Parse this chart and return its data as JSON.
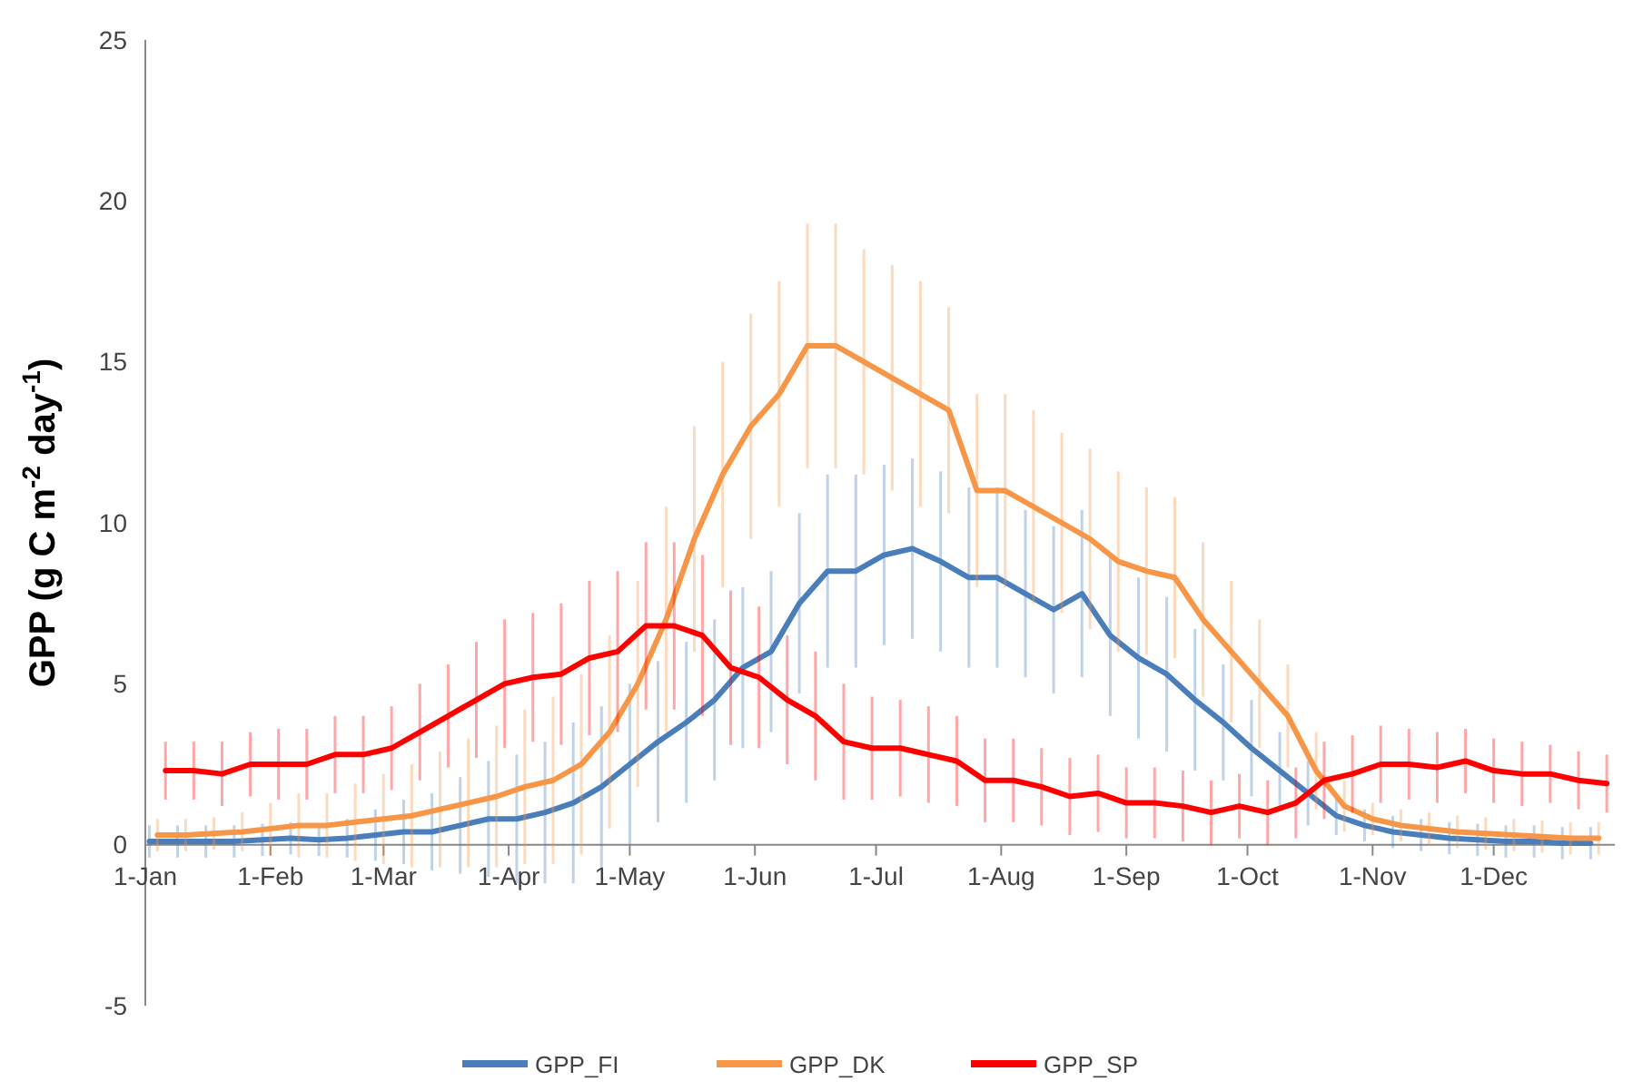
{
  "chart_data": {
    "type": "line",
    "ylabel": "GPP (g C m$^{-2}$ day$^{-1}$)",
    "series": [
      {
        "name": "GPP_FI",
        "color": "#4a7ebb",
        "x": [
          "--01-02",
          "--01-09",
          "--01-16",
          "--01-23",
          "--01-30",
          "--02-06",
          "--02-13",
          "--02-20",
          "--02-27",
          "--03-06",
          "--03-13",
          "--03-20",
          "--03-27",
          "--04-03",
          "--04-10",
          "--04-17",
          "--04-24",
          "--05-01",
          "--05-08",
          "--05-15",
          "--05-22",
          "--05-29",
          "--06-05",
          "--06-12",
          "--06-19",
          "--06-26",
          "--07-03",
          "--07-10",
          "--07-17",
          "--07-24",
          "--07-31",
          "--08-07",
          "--08-14",
          "--08-21",
          "--08-28",
          "--09-04",
          "--09-11",
          "--09-18",
          "--09-25",
          "--10-02",
          "--10-09",
          "--10-16",
          "--10-23",
          "--10-30",
          "--11-06",
          "--11-13",
          "--11-20",
          "--11-27",
          "--12-04",
          "--12-11",
          "--12-18",
          "--12-25"
        ],
        "values": [
          0.1,
          0.1,
          0.1,
          0.1,
          0.15,
          0.2,
          0.15,
          0.2,
          0.3,
          0.4,
          0.4,
          0.6,
          0.8,
          0.8,
          1.0,
          1.3,
          1.8,
          2.5,
          3.2,
          3.8,
          4.5,
          5.5,
          6.0,
          7.5,
          8.5,
          8.5,
          9.0,
          9.2,
          8.8,
          8.3,
          8.3,
          7.8,
          7.3,
          7.8,
          6.5,
          5.8,
          5.3,
          4.5,
          3.8,
          3.0,
          2.3,
          1.6,
          0.9,
          0.6,
          0.4,
          0.3,
          0.2,
          0.15,
          0.1,
          0.1,
          0.05,
          0.05
        ],
        "errors": [
          0.5,
          0.5,
          0.5,
          0.5,
          0.5,
          0.5,
          0.5,
          0.6,
          0.8,
          1,
          1.2,
          1.5,
          1.8,
          2,
          2.2,
          2.5,
          2.5,
          2.5,
          2.5,
          2.5,
          2.5,
          2.5,
          2.5,
          2.8,
          3,
          3,
          2.8,
          2.8,
          2.8,
          2.8,
          2.8,
          2.6,
          2.6,
          2.6,
          2.5,
          2.5,
          2.4,
          2.2,
          1.8,
          1.5,
          1.2,
          1,
          0.6,
          0.5,
          0.5,
          0.5,
          0.5,
          0.5,
          0.5,
          0.5,
          0.5,
          0.5
        ]
      },
      {
        "name": "GPP_DK",
        "color": "#f79646",
        "x": [
          "--01-04",
          "--01-11",
          "--01-18",
          "--01-25",
          "--02-01",
          "--02-08",
          "--02-15",
          "--02-22",
          "--03-01",
          "--03-08",
          "--03-15",
          "--03-22",
          "--03-29",
          "--04-05",
          "--04-12",
          "--04-19",
          "--04-26",
          "--05-03",
          "--05-10",
          "--05-17",
          "--05-24",
          "--05-31",
          "--06-07",
          "--06-14",
          "--06-21",
          "--06-28",
          "--07-05",
          "--07-12",
          "--07-19",
          "--07-26",
          "--08-02",
          "--08-09",
          "--08-16",
          "--08-23",
          "--08-30",
          "--09-06",
          "--09-13",
          "--09-20",
          "--09-27",
          "--10-04",
          "--10-11",
          "--10-18",
          "--10-25",
          "--11-01",
          "--11-08",
          "--11-15",
          "--11-22",
          "--11-29",
          "--12-06",
          "--12-13",
          "--12-20",
          "--12-27"
        ],
        "values": [
          0.3,
          0.3,
          0.35,
          0.4,
          0.5,
          0.6,
          0.6,
          0.7,
          0.8,
          0.9,
          1.1,
          1.3,
          1.5,
          1.8,
          2.0,
          2.5,
          3.5,
          5.0,
          7.0,
          9.5,
          11.5,
          13.0,
          14.0,
          15.5,
          15.5,
          15.0,
          14.5,
          14.0,
          13.5,
          11.0,
          11.0,
          10.5,
          10.0,
          9.5,
          8.8,
          8.5,
          8.3,
          7.0,
          6.0,
          5.0,
          4.0,
          2.3,
          1.2,
          0.8,
          0.6,
          0.5,
          0.4,
          0.35,
          0.3,
          0.25,
          0.2,
          0.2
        ],
        "errors": [
          0.5,
          0.5,
          0.5,
          0.6,
          0.8,
          1,
          1,
          1.2,
          1.4,
          1.6,
          1.8,
          2,
          2.2,
          2.4,
          2.6,
          2.8,
          3,
          3.2,
          3.5,
          3.5,
          3.5,
          3.5,
          3.5,
          3.8,
          3.8,
          3.5,
          3.5,
          3.5,
          3.2,
          3,
          3,
          3,
          2.8,
          2.8,
          2.8,
          2.6,
          2.5,
          2.4,
          2.2,
          2,
          1.6,
          1.2,
          0.8,
          0.5,
          0.5,
          0.5,
          0.5,
          0.5,
          0.5,
          0.5,
          0.5,
          0.5
        ]
      },
      {
        "name": "GPP_SP",
        "color": "#ff0000",
        "x": [
          "--01-06",
          "--01-13",
          "--01-20",
          "--01-27",
          "--02-03",
          "--02-10",
          "--02-17",
          "--02-24",
          "--03-03",
          "--03-10",
          "--03-17",
          "--03-24",
          "--03-31",
          "--04-07",
          "--04-14",
          "--04-21",
          "--04-28",
          "--05-05",
          "--05-12",
          "--05-19",
          "--05-26",
          "--06-02",
          "--06-09",
          "--06-16",
          "--06-23",
          "--06-30",
          "--07-07",
          "--07-14",
          "--07-21",
          "--07-28",
          "--08-04",
          "--08-11",
          "--08-18",
          "--08-25",
          "--09-01",
          "--09-08",
          "--09-15",
          "--09-22",
          "--09-29",
          "--10-06",
          "--10-13",
          "--10-20",
          "--10-27",
          "--11-03",
          "--11-10",
          "--11-17",
          "--11-24",
          "--12-01",
          "--12-08",
          "--12-15",
          "--12-22",
          "--12-29"
        ],
        "values": [
          2.3,
          2.3,
          2.2,
          2.5,
          2.5,
          2.5,
          2.8,
          2.8,
          3.0,
          3.5,
          4.0,
          4.5,
          5.0,
          5.2,
          5.3,
          5.8,
          6.0,
          6.8,
          6.8,
          6.5,
          5.5,
          5.2,
          4.5,
          4.0,
          3.2,
          3.0,
          3.0,
          2.8,
          2.6,
          2.0,
          2.0,
          1.8,
          1.5,
          1.6,
          1.3,
          1.3,
          1.2,
          1.0,
          1.2,
          1.0,
          1.3,
          2.0,
          2.2,
          2.5,
          2.5,
          2.4,
          2.6,
          2.3,
          2.2,
          2.2,
          2.0,
          1.9
        ],
        "errors": [
          0.9,
          0.9,
          1,
          1,
          1.1,
          1.1,
          1.2,
          1.2,
          1.3,
          1.5,
          1.6,
          1.8,
          2,
          2,
          2.2,
          2.4,
          2.5,
          2.6,
          2.6,
          2.5,
          2.4,
          2.2,
          2,
          2,
          1.8,
          1.6,
          1.5,
          1.5,
          1.4,
          1.3,
          1.3,
          1.2,
          1.2,
          1.2,
          1.1,
          1.1,
          1.1,
          1,
          1,
          1,
          1.1,
          1.2,
          1.2,
          1.2,
          1.1,
          1.1,
          1,
          1,
          1,
          0.9,
          0.9,
          0.9
        ]
      }
    ],
    "xlim": [
      "--01-01",
      "--12-31"
    ],
    "xticks": [
      {
        "value": "--01-01",
        "label": "1-Jan"
      },
      {
        "value": "--02-01",
        "label": "1-Feb"
      },
      {
        "value": "--03-01",
        "label": "1-Mar"
      },
      {
        "value": "--04-01",
        "label": "1-Apr"
      },
      {
        "value": "--05-01",
        "label": "1-May"
      },
      {
        "value": "--06-01",
        "label": "1-Jun"
      },
      {
        "value": "--07-01",
        "label": "1-Jul"
      },
      {
        "value": "--08-01",
        "label": "1-Aug"
      },
      {
        "value": "--09-01",
        "label": "1-Sep"
      },
      {
        "value": "--10-01",
        "label": "1-Oct"
      },
      {
        "value": "--11-01",
        "label": "1-Nov"
      },
      {
        "value": "--12-01",
        "label": "1-Dec"
      }
    ],
    "ylim": [
      -5,
      25
    ],
    "yticks": [
      -5,
      0,
      5,
      10,
      15,
      20,
      25
    ],
    "legend": "bottom",
    "line_style": "solid",
    "marker": "none"
  }
}
